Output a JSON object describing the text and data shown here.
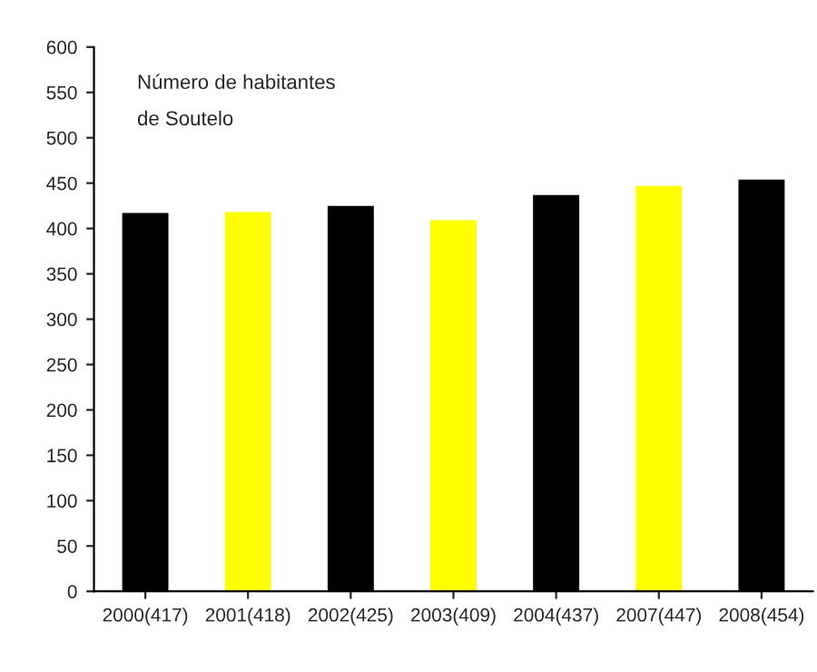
{
  "chart_data": {
    "type": "bar",
    "title": "Número de habitantes\nde Soutelo",
    "categories": [
      "2000(417)",
      "2001(418)",
      "2002(425)",
      "2003(409)",
      "2004(437)",
      "2007(447)",
      "2008(454)"
    ],
    "values": [
      417,
      418,
      425,
      409,
      437,
      447,
      454
    ],
    "colors": [
      "#000000",
      "#ffff00",
      "#000000",
      "#ffff00",
      "#000000",
      "#ffff00",
      "#000000"
    ],
    "ylim": [
      0,
      600
    ],
    "yticks": [
      0,
      50,
      100,
      150,
      200,
      250,
      300,
      350,
      400,
      450,
      500,
      550,
      600
    ],
    "grid": false,
    "legend": false
  }
}
